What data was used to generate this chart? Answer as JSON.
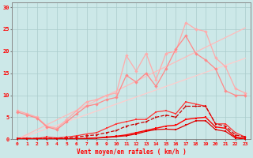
{
  "x": [
    0,
    1,
    2,
    3,
    4,
    5,
    6,
    7,
    8,
    9,
    10,
    11,
    12,
    13,
    14,
    15,
    16,
    17,
    18,
    19,
    20,
    21,
    22,
    23
  ],
  "line_diag1": [
    0.0,
    1.1,
    2.2,
    3.3,
    4.4,
    5.5,
    6.6,
    7.7,
    8.8,
    9.9,
    11.0,
    12.1,
    13.2,
    14.3,
    15.4,
    16.5,
    17.6,
    18.7,
    19.8,
    20.9,
    22.0,
    23.1,
    24.2,
    25.3
  ],
  "line_diag2": [
    0.0,
    0.8,
    1.6,
    2.4,
    3.2,
    4.0,
    4.8,
    5.6,
    6.4,
    7.2,
    8.0,
    8.8,
    9.6,
    10.4,
    11.2,
    12.0,
    12.8,
    13.6,
    14.4,
    15.2,
    16.0,
    16.8,
    17.6,
    18.4
  ],
  "line_jagged1": [
    6.5,
    5.8,
    5.0,
    3.0,
    2.5,
    4.5,
    6.5,
    8.5,
    9.0,
    10.0,
    10.5,
    19.0,
    15.5,
    19.5,
    13.5,
    19.5,
    20.0,
    26.5,
    25.0,
    24.5,
    18.5,
    16.5,
    11.5,
    10.5
  ],
  "line_jagged2": [
    6.2,
    5.5,
    4.8,
    2.8,
    2.2,
    4.0,
    5.8,
    7.5,
    8.0,
    9.0,
    9.5,
    14.5,
    13.0,
    15.0,
    12.0,
    16.0,
    20.5,
    23.5,
    19.5,
    18.0,
    16.0,
    11.0,
    10.0,
    10.0
  ],
  "line_mid1": [
    0.2,
    0.2,
    0.2,
    0.5,
    0.3,
    0.5,
    0.8,
    1.2,
    1.5,
    2.5,
    3.5,
    4.0,
    4.5,
    4.5,
    6.2,
    6.5,
    5.8,
    8.5,
    8.0,
    7.5,
    3.5,
    3.5,
    1.5,
    0.5
  ],
  "line_mid2": [
    0.2,
    0.2,
    0.2,
    0.2,
    0.2,
    0.3,
    0.5,
    0.8,
    1.0,
    1.5,
    2.0,
    3.0,
    3.5,
    4.0,
    5.0,
    5.5,
    5.0,
    7.5,
    7.5,
    7.5,
    3.5,
    3.0,
    1.0,
    0.5
  ],
  "line_bot1": [
    0.05,
    0.05,
    0.05,
    0.05,
    0.05,
    0.1,
    0.15,
    0.2,
    0.3,
    0.5,
    0.7,
    1.0,
    1.5,
    2.0,
    2.5,
    3.0,
    3.2,
    4.5,
    4.8,
    5.0,
    2.8,
    2.5,
    0.5,
    0.2
  ],
  "line_bot2": [
    0.0,
    0.0,
    0.0,
    0.05,
    0.05,
    0.1,
    0.1,
    0.15,
    0.25,
    0.4,
    0.6,
    0.8,
    1.2,
    1.8,
    2.2,
    2.3,
    2.2,
    3.2,
    4.2,
    4.2,
    2.2,
    1.8,
    0.3,
    0.0
  ],
  "color_diag1": "#ffbbbb",
  "color_diag2": "#ffcccc",
  "color_jagged1": "#ffaaaa",
  "color_jagged2": "#ff8888",
  "color_mid1": "#ff3333",
  "color_mid2": "#cc0000",
  "color_bot1": "#ff0000",
  "color_bot2": "#dd0000",
  "bgcolor": "#cce8e8",
  "grid_color": "#aacccc",
  "xlabel": "Vent moyen/en rafales ( km/h )",
  "xlim": [
    -0.5,
    23.5
  ],
  "ylim": [
    0,
    31
  ],
  "xticks": [
    0,
    1,
    2,
    3,
    4,
    5,
    6,
    7,
    8,
    9,
    10,
    11,
    12,
    13,
    14,
    15,
    16,
    17,
    18,
    19,
    20,
    21,
    22,
    23
  ],
  "yticks": [
    0,
    5,
    10,
    15,
    20,
    25,
    30
  ]
}
